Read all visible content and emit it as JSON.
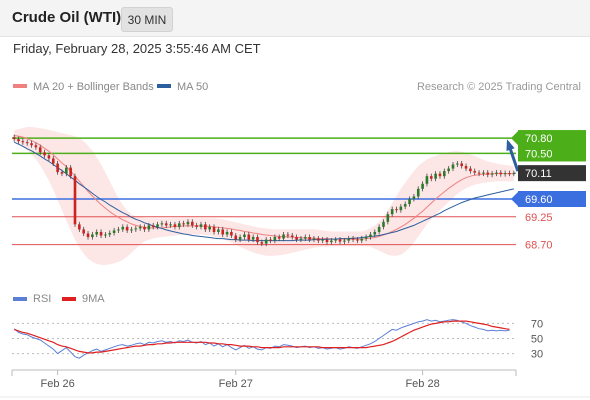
{
  "header": {
    "instrument": "Crude Oil (WTI)",
    "timeframe": "30 MIN"
  },
  "timestamp": "Friday, February 28, 2025 3:55:46 AM CET",
  "copyright": "Research © 2025 Trading Central",
  "colors": {
    "ma20": "#f08080",
    "bands_fill": "#fde2e2",
    "ma50": "#2c5f9e",
    "resistance": "#4caf1a",
    "support": "#3b6fe0",
    "target": "#e05050",
    "candle_up": "#2a7a2a",
    "candle_down": "#cc2222",
    "rsi": "#5b7fd6",
    "rsi_ma": "#e02020",
    "arrow": "#2c5f9e",
    "price_box": "#333333"
  },
  "chart_data": [
    {
      "type": "candlestick",
      "title": "Crude Oil (WTI)",
      "interval": "30 MIN",
      "legend": [
        {
          "name": "MA 20 + Bollinger Bands",
          "color": "#f08080"
        },
        {
          "name": "MA 50",
          "color": "#2c5f9e"
        }
      ],
      "legend_position": "top-left",
      "x_ticks": [
        "Feb 26",
        "Feb 27",
        "Feb 28"
      ],
      "ylim": [
        68.2,
        71.0
      ],
      "current_price": 70.11,
      "levels": [
        {
          "label": "70.80",
          "value": 70.8,
          "kind": "resistance"
        },
        {
          "label": "70.50",
          "value": 70.5,
          "kind": "resistance"
        },
        {
          "label": "69.60",
          "value": 69.6,
          "kind": "support"
        },
        {
          "label": "69.25",
          "value": 69.25,
          "kind": "target"
        },
        {
          "label": "68.70",
          "value": 68.7,
          "kind": "target"
        }
      ],
      "current_label": "70.11",
      "close": [
        70.78,
        70.74,
        70.72,
        70.7,
        70.66,
        70.62,
        70.52,
        70.46,
        70.4,
        70.3,
        70.13,
        70.1,
        70.22,
        70.05,
        69.1,
        69.0,
        68.92,
        68.85,
        68.9,
        68.95,
        68.88,
        68.9,
        68.93,
        68.98,
        69.0,
        69.05,
        68.98,
        69.0,
        69.02,
        69.05,
        69.0,
        69.08,
        69.05,
        69.1,
        69.12,
        69.08,
        69.1,
        69.05,
        69.12,
        69.1,
        69.15,
        69.08,
        69.05,
        69.1,
        69.0,
        69.05,
        68.95,
        69.0,
        68.9,
        68.95,
        68.88,
        68.8,
        68.85,
        68.9,
        68.8,
        68.85,
        68.75,
        68.72,
        68.8,
        68.78,
        68.85,
        68.82,
        68.9,
        68.88,
        68.85,
        68.8,
        68.82,
        68.85,
        68.8,
        68.82,
        68.78,
        68.8,
        68.75,
        68.78,
        68.8,
        68.76,
        68.78,
        68.82,
        68.8,
        68.78,
        68.82,
        68.85,
        68.9,
        68.95,
        69.05,
        69.15,
        69.3,
        69.4,
        69.38,
        69.45,
        69.5,
        69.6,
        69.65,
        69.8,
        69.9,
        70.05,
        70.0,
        70.1,
        70.05,
        70.15,
        70.2,
        70.28,
        70.3,
        70.25,
        70.2,
        70.15,
        70.12,
        70.1,
        70.12,
        70.08,
        70.1,
        70.12,
        70.09,
        70.11,
        70.1,
        70.11
      ],
      "ma20": [
        70.85,
        70.84,
        70.82,
        70.79,
        70.75,
        70.71,
        70.66,
        70.6,
        70.54,
        70.47,
        70.39,
        70.31,
        70.24,
        70.15,
        70.05,
        69.95,
        69.85,
        69.75,
        69.66,
        69.57,
        69.49,
        69.42,
        69.35,
        69.29,
        69.24,
        69.19,
        69.15,
        69.11,
        69.08,
        69.06,
        69.04,
        69.03,
        69.03,
        69.03,
        69.03,
        69.04,
        69.05,
        69.06,
        69.06,
        69.07,
        69.07,
        69.07,
        69.07,
        69.07,
        69.06,
        69.06,
        69.05,
        69.04,
        69.03,
        69.02,
        69.01,
        68.99,
        68.98,
        68.96,
        68.95,
        68.93,
        68.92,
        68.9,
        68.89,
        68.88,
        68.87,
        68.86,
        68.86,
        68.85,
        68.85,
        68.84,
        68.84,
        68.83,
        68.83,
        68.83,
        68.82,
        68.82,
        68.82,
        68.81,
        68.81,
        68.81,
        68.81,
        68.81,
        68.81,
        68.81,
        68.81,
        68.82,
        68.83,
        68.84,
        68.86,
        68.89,
        68.92,
        68.96,
        69.0,
        69.05,
        69.1,
        69.16,
        69.22,
        69.29,
        69.36,
        69.44,
        69.52,
        69.6,
        69.67,
        69.74,
        69.81,
        69.87,
        69.93,
        69.98,
        70.02,
        70.05,
        70.07,
        70.08,
        70.09,
        70.09,
        70.1,
        70.1,
        70.1,
        70.1,
        70.1,
        70.1
      ],
      "bb_upper": [
        70.95,
        70.98,
        71.0,
        71.02,
        71.02,
        71.01,
        71.0,
        70.98,
        70.96,
        70.94,
        70.92,
        70.9,
        70.88,
        70.86,
        70.84,
        70.8,
        70.74,
        70.65,
        70.55,
        70.42,
        70.28,
        70.12,
        69.95,
        69.78,
        69.62,
        69.48,
        69.38,
        69.3,
        69.26,
        69.24,
        69.23,
        69.22,
        69.22,
        69.22,
        69.22,
        69.22,
        69.22,
        69.22,
        69.22,
        69.22,
        69.22,
        69.22,
        69.22,
        69.22,
        69.22,
        69.22,
        69.22,
        69.21,
        69.2,
        69.18,
        69.16,
        69.14,
        69.12,
        69.1,
        69.08,
        69.06,
        69.04,
        69.03,
        69.02,
        69.01,
        69.0,
        69.0,
        69.0,
        69.0,
        69.0,
        69.0,
        69.0,
        69.0,
        69.0,
        69.0,
        68.99,
        68.98,
        68.97,
        68.96,
        68.96,
        68.96,
        68.96,
        68.96,
        68.96,
        68.96,
        68.96,
        68.98,
        69.02,
        69.08,
        69.15,
        69.25,
        69.38,
        69.52,
        69.66,
        69.8,
        69.92,
        70.04,
        70.15,
        70.25,
        70.32,
        70.38,
        70.42,
        70.45,
        70.48,
        70.5,
        70.52,
        70.54,
        70.54,
        70.53,
        70.51,
        70.48,
        70.45,
        70.41,
        70.37,
        70.34,
        70.32,
        70.3,
        70.28,
        70.27,
        70.26,
        70.25
      ],
      "bb_lower": [
        70.75,
        70.7,
        70.64,
        70.56,
        70.48,
        70.38,
        70.26,
        70.12,
        69.96,
        69.78,
        69.58,
        69.38,
        69.18,
        68.98,
        68.8,
        68.65,
        68.52,
        68.42,
        68.36,
        68.32,
        68.3,
        68.3,
        68.31,
        68.33,
        68.36,
        68.4,
        68.46,
        68.54,
        68.62,
        68.7,
        68.76,
        68.8,
        68.82,
        68.84,
        68.85,
        68.86,
        68.87,
        68.88,
        68.89,
        68.9,
        68.9,
        68.9,
        68.9,
        68.9,
        68.89,
        68.88,
        68.86,
        68.84,
        68.81,
        68.78,
        68.74,
        68.7,
        68.66,
        68.62,
        68.58,
        68.55,
        68.52,
        68.5,
        68.48,
        68.48,
        68.48,
        68.49,
        68.5,
        68.52,
        68.54,
        68.56,
        68.58,
        68.6,
        68.62,
        68.64,
        68.65,
        68.66,
        68.66,
        68.67,
        68.67,
        68.67,
        68.67,
        68.67,
        68.67,
        68.67,
        68.67,
        68.67,
        68.66,
        68.62,
        68.58,
        68.54,
        68.5,
        68.48,
        68.48,
        68.5,
        68.56,
        68.64,
        68.74,
        68.86,
        68.98,
        69.1,
        69.2,
        69.3,
        69.38,
        69.46,
        69.54,
        69.62,
        69.7,
        69.76,
        69.81,
        69.85,
        69.88,
        69.9,
        69.92,
        69.93,
        69.94,
        69.95,
        69.95,
        69.95,
        69.95,
        69.95
      ],
      "ma50": [
        70.72,
        70.68,
        70.64,
        70.59,
        70.55,
        70.5,
        70.45,
        70.39,
        70.34,
        70.28,
        70.22,
        70.16,
        70.1,
        70.03,
        69.97,
        69.9,
        69.84,
        69.78,
        69.71,
        69.65,
        69.59,
        69.54,
        69.48,
        69.43,
        69.38,
        69.33,
        69.29,
        69.24,
        69.2,
        69.17,
        69.13,
        69.1,
        69.07,
        69.04,
        69.02,
        68.99,
        68.97,
        68.95,
        68.93,
        68.91,
        68.9,
        68.88,
        68.87,
        68.86,
        68.85,
        68.84,
        68.83,
        68.82,
        68.82,
        68.81,
        68.8,
        68.8,
        68.79,
        68.79,
        68.79,
        68.78,
        68.78,
        68.78,
        68.78,
        68.78,
        68.78,
        68.78,
        68.78,
        68.78,
        68.78,
        68.79,
        68.79,
        68.79,
        68.79,
        68.8,
        68.8,
        68.8,
        68.81,
        68.81,
        68.81,
        68.82,
        68.82,
        68.82,
        68.83,
        68.83,
        68.84,
        68.85,
        68.86,
        68.87,
        68.88,
        68.9,
        68.92,
        68.94,
        68.96,
        68.99,
        69.02,
        69.05,
        69.08,
        69.12,
        69.16,
        69.2,
        69.24,
        69.28,
        69.32,
        69.37,
        69.41,
        69.45,
        69.49,
        69.53,
        69.56,
        69.59,
        69.62,
        69.64,
        69.66,
        69.68,
        69.7,
        69.72,
        69.74,
        69.76,
        69.78,
        69.8
      ]
    },
    {
      "type": "line",
      "legend": [
        {
          "name": "RSI",
          "color": "#5b7fd6"
        },
        {
          "name": "9MA",
          "color": "#e02020"
        }
      ],
      "legend_position": "top-left",
      "ylim": [
        15,
        85
      ],
      "y_ticks": [
        70,
        50,
        30
      ],
      "series": [
        {
          "name": "RSI",
          "values": [
            63,
            58,
            56,
            55,
            52,
            50,
            48,
            44,
            40,
            36,
            30,
            34,
            38,
            32,
            26,
            24,
            28,
            31,
            34,
            36,
            33,
            35,
            37,
            39,
            41,
            42,
            40,
            41,
            43,
            44,
            42,
            45,
            44,
            46,
            47,
            45,
            46,
            44,
            47,
            46,
            48,
            45,
            44,
            46,
            42,
            44,
            40,
            43,
            39,
            42,
            38,
            35,
            38,
            41,
            37,
            39,
            36,
            35,
            38,
            37,
            40,
            39,
            42,
            41,
            40,
            38,
            39,
            40,
            38,
            39,
            37,
            38,
            36,
            37,
            38,
            36,
            37,
            39,
            38,
            37,
            39,
            41,
            43,
            46,
            50,
            54,
            58,
            62,
            61,
            64,
            66,
            68,
            70,
            72,
            73,
            75,
            73,
            74,
            72,
            73,
            74,
            75,
            74,
            72,
            70,
            67,
            65,
            63,
            62,
            60,
            61,
            60,
            61,
            60,
            61
          ]
        },
        {
          "name": "9MA",
          "values": [
            62,
            60,
            58,
            57,
            55,
            53,
            51,
            49,
            47,
            45,
            42,
            40,
            39,
            37,
            35,
            33,
            32,
            31,
            31,
            32,
            32,
            33,
            34,
            35,
            36,
            37,
            38,
            39,
            40,
            40,
            41,
            42,
            42,
            43,
            43,
            44,
            44,
            45,
            45,
            45,
            45,
            45,
            45,
            45,
            45,
            44,
            44,
            43,
            43,
            42,
            42,
            41,
            40,
            40,
            40,
            39,
            39,
            38,
            38,
            38,
            38,
            38,
            39,
            39,
            39,
            39,
            39,
            39,
            39,
            39,
            39,
            38,
            38,
            38,
            38,
            38,
            38,
            38,
            38,
            38,
            38,
            38,
            39,
            40,
            41,
            42,
            44,
            46,
            49,
            52,
            55,
            58,
            61,
            63,
            65,
            67,
            69,
            70,
            71,
            72,
            72,
            73,
            73,
            73,
            73,
            72,
            71,
            70,
            69,
            68,
            66,
            65,
            64,
            63,
            62
          ]
        }
      ]
    }
  ]
}
